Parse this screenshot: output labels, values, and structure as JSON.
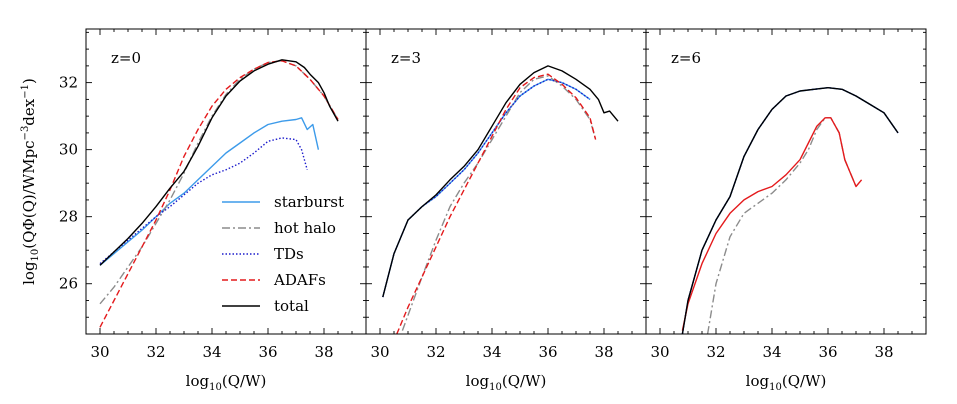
{
  "chart_data": [
    {
      "type": "line",
      "panel_label": "z=0",
      "xlabel": "log10(Q/W)",
      "ylabel": "log10(QΦ(Q)/WMpc−3dex−1)",
      "xlim": [
        29.5,
        39.5
      ],
      "ylim": [
        24.5,
        33.6
      ],
      "xticks": [
        30,
        32,
        34,
        36,
        38
      ],
      "yticks": [
        26,
        28,
        30,
        32
      ],
      "legend": {
        "position": "bottom-right",
        "entries": [
          "starburst",
          "hot halo",
          "TDs",
          "ADAFs",
          "total"
        ]
      },
      "series": [
        {
          "name": "starburst",
          "style": "solid",
          "color": "#3d9bea",
          "x": [
            30.0,
            30.5,
            31.0,
            31.5,
            32.0,
            32.5,
            33.0,
            33.5,
            34.0,
            34.5,
            35.0,
            35.5,
            36.0,
            36.5,
            37.0,
            37.2,
            37.4,
            37.6,
            37.8
          ],
          "y": [
            26.55,
            26.9,
            27.25,
            27.6,
            28.0,
            28.4,
            28.7,
            29.1,
            29.5,
            29.9,
            30.2,
            30.5,
            30.75,
            30.85,
            30.9,
            30.95,
            30.6,
            30.75,
            30.0
          ]
        },
        {
          "name": "hot halo",
          "style": "dashdot",
          "color": "#8c8c8c",
          "x": [
            30.0,
            30.5,
            31.0,
            31.5,
            32.0,
            32.5,
            33.0,
            33.5,
            34.0,
            34.5,
            35.0,
            35.5,
            36.0,
            36.5,
            37.0,
            37.5,
            38.0,
            38.5
          ],
          "y": [
            25.4,
            25.9,
            26.5,
            27.1,
            27.8,
            28.5,
            29.3,
            30.2,
            31.0,
            31.65,
            32.1,
            32.4,
            32.6,
            32.65,
            32.5,
            32.1,
            31.6,
            30.9
          ]
        },
        {
          "name": "TDs",
          "style": "dotted",
          "color": "#1c1ccc",
          "x": [
            30.0,
            30.5,
            31.0,
            31.5,
            32.0,
            32.5,
            33.0,
            33.5,
            34.0,
            34.5,
            35.0,
            35.5,
            36.0,
            36.5,
            37.0,
            37.2,
            37.4
          ],
          "y": [
            26.6,
            26.95,
            27.3,
            27.65,
            28.0,
            28.3,
            28.65,
            29.0,
            29.25,
            29.4,
            29.6,
            29.9,
            30.25,
            30.35,
            30.3,
            30.0,
            29.4
          ]
        },
        {
          "name": "ADAFs",
          "style": "dashed",
          "color": "#e41a1c",
          "x": [
            30.0,
            30.5,
            31.0,
            31.5,
            32.0,
            32.5,
            33.0,
            33.5,
            34.0,
            34.5,
            35.0,
            35.5,
            36.0,
            36.5,
            37.0,
            37.5,
            38.0,
            38.5
          ],
          "y": [
            24.7,
            25.5,
            26.3,
            27.1,
            27.9,
            28.8,
            29.8,
            30.6,
            31.3,
            31.8,
            32.15,
            32.4,
            32.6,
            32.65,
            32.5,
            32.1,
            31.6,
            30.9
          ]
        },
        {
          "name": "total",
          "style": "solid",
          "color": "#000000",
          "x": [
            30.0,
            30.5,
            31.0,
            31.5,
            32.0,
            32.5,
            33.0,
            33.5,
            34.0,
            34.5,
            35.0,
            35.5,
            36.0,
            36.5,
            37.0,
            37.3,
            37.5,
            37.8,
            38.0,
            38.2,
            38.5
          ],
          "y": [
            26.55,
            26.95,
            27.35,
            27.8,
            28.3,
            28.85,
            29.35,
            30.1,
            30.95,
            31.6,
            32.05,
            32.35,
            32.55,
            32.68,
            32.62,
            32.45,
            32.25,
            32.0,
            31.7,
            31.3,
            30.85
          ]
        }
      ]
    },
    {
      "type": "line",
      "panel_label": "z=3",
      "xlabel": "log10(Q/W)",
      "xlim": [
        29.5,
        39.5
      ],
      "ylim": [
        24.5,
        33.6
      ],
      "xticks": [
        30,
        32,
        34,
        36,
        38
      ],
      "series": [
        {
          "name": "starburst",
          "style": "solid",
          "color": "#3d9bea",
          "x": [
            30.1,
            30.5,
            31.0,
            31.5,
            32.0,
            32.5,
            33.0,
            33.5,
            34.0,
            34.5,
            35.0,
            35.5,
            36.0,
            36.5,
            37.0,
            37.5
          ],
          "y": [
            25.6,
            26.9,
            27.9,
            28.3,
            28.6,
            29.0,
            29.4,
            29.9,
            30.5,
            31.1,
            31.6,
            31.9,
            32.1,
            32.0,
            31.8,
            31.5
          ]
        },
        {
          "name": "hot halo",
          "style": "dashdot",
          "color": "#8c8c8c",
          "x": [
            30.8,
            31.5,
            32.0,
            32.5,
            33.0,
            33.5,
            34.0,
            34.5,
            35.0,
            35.5,
            36.0,
            36.5,
            37.0,
            37.5,
            37.7
          ],
          "y": [
            24.6,
            26.2,
            27.3,
            28.3,
            29.0,
            29.6,
            30.3,
            31.0,
            31.7,
            32.1,
            32.2,
            31.9,
            31.5,
            30.9,
            30.3
          ]
        },
        {
          "name": "TDs",
          "style": "dotted",
          "color": "#1c1ccc",
          "x": [
            30.1,
            30.5,
            31.0,
            31.5,
            32.0,
            32.5,
            33.0,
            33.5,
            34.0,
            34.5,
            35.0,
            35.5,
            36.0,
            36.5,
            37.0,
            37.5
          ],
          "y": [
            25.6,
            26.9,
            27.9,
            28.3,
            28.6,
            29.0,
            29.4,
            29.9,
            30.5,
            31.1,
            31.6,
            31.9,
            32.1,
            32.0,
            31.8,
            31.5
          ]
        },
        {
          "name": "ADAFs",
          "style": "dashed",
          "color": "#e41a1c",
          "x": [
            30.6,
            31.0,
            31.5,
            32.0,
            32.5,
            33.0,
            33.5,
            34.0,
            34.5,
            35.0,
            35.5,
            36.0,
            36.5,
            37.0,
            37.5,
            37.7
          ],
          "y": [
            24.5,
            25.3,
            26.2,
            27.1,
            28.0,
            28.8,
            29.6,
            30.4,
            31.2,
            31.85,
            32.15,
            32.25,
            31.95,
            31.55,
            30.95,
            30.3
          ]
        },
        {
          "name": "total",
          "style": "solid",
          "color": "#000000",
          "x": [
            30.1,
            30.5,
            31.0,
            31.5,
            32.0,
            32.5,
            33.0,
            33.5,
            34.0,
            34.5,
            35.0,
            35.5,
            36.0,
            36.5,
            37.0,
            37.5,
            37.8,
            38.0,
            38.2,
            38.5
          ],
          "y": [
            25.6,
            26.9,
            27.9,
            28.3,
            28.65,
            29.1,
            29.5,
            30.0,
            30.7,
            31.4,
            31.95,
            32.3,
            32.5,
            32.35,
            32.1,
            31.8,
            31.5,
            31.1,
            31.15,
            30.85
          ]
        }
      ]
    },
    {
      "type": "line",
      "panel_label": "z=6",
      "xlabel": "log10(Q/W)",
      "xlim": [
        29.5,
        39.5
      ],
      "ylim": [
        24.5,
        33.6
      ],
      "xticks": [
        30,
        32,
        34,
        36,
        38
      ],
      "series": [
        {
          "name": "starburst",
          "style": "solid",
          "color": "#3d9bea",
          "x": [
            30.8,
            31.0,
            31.5,
            32.0,
            32.5,
            33.0,
            33.5,
            34.0,
            34.5,
            35.0,
            35.5,
            36.0,
            36.5,
            37.0,
            37.5,
            38.0,
            38.5
          ],
          "y": [
            24.5,
            25.5,
            27.0,
            27.9,
            28.6,
            29.8,
            30.6,
            31.2,
            31.6,
            31.75,
            31.8,
            31.85,
            31.8,
            31.6,
            31.35,
            31.1,
            30.5
          ]
        },
        {
          "name": "hot halo",
          "style": "dashdot",
          "color": "#8c8c8c",
          "x": [
            31.7,
            32.0,
            32.5,
            33.0,
            33.5,
            34.0,
            34.5,
            35.0,
            35.3,
            35.6,
            35.9,
            36.1,
            36.4,
            36.6,
            36.8,
            37.0
          ],
          "y": [
            24.5,
            26.0,
            27.4,
            28.1,
            28.4,
            28.7,
            29.1,
            29.6,
            30.0,
            30.6,
            30.95,
            30.95,
            30.5,
            29.7,
            29.3,
            28.9
          ]
        },
        {
          "name": "TDs",
          "style": "dotted",
          "color": "#1c1ccc",
          "x": [
            30.8,
            31.0,
            31.5,
            32.0,
            32.5,
            33.0,
            33.5,
            34.0,
            34.5,
            35.0,
            35.5,
            36.0,
            36.5,
            37.0,
            37.5,
            38.0,
            38.5
          ],
          "y": [
            24.5,
            25.5,
            27.0,
            27.9,
            28.6,
            29.8,
            30.6,
            31.2,
            31.6,
            31.75,
            31.8,
            31.85,
            31.8,
            31.6,
            31.35,
            31.1,
            30.5
          ]
        },
        {
          "name": "ADAFs",
          "style": "solid",
          "color": "#e41a1c",
          "x": [
            30.8,
            31.0,
            31.5,
            32.0,
            32.5,
            33.0,
            33.5,
            34.0,
            34.5,
            35.0,
            35.3,
            35.6,
            35.9,
            36.1,
            36.4,
            36.6,
            36.8,
            37.0,
            37.2
          ],
          "y": [
            24.6,
            25.4,
            26.6,
            27.5,
            28.1,
            28.5,
            28.75,
            28.9,
            29.25,
            29.7,
            30.2,
            30.7,
            30.95,
            30.95,
            30.5,
            29.7,
            29.3,
            28.9,
            29.1
          ]
        },
        {
          "name": "total",
          "style": "solid",
          "color": "#000000",
          "x": [
            30.8,
            31.0,
            31.5,
            32.0,
            32.5,
            33.0,
            33.5,
            34.0,
            34.5,
            35.0,
            35.5,
            36.0,
            36.5,
            37.0,
            37.5,
            38.0,
            38.5
          ],
          "y": [
            24.5,
            25.5,
            27.0,
            27.9,
            28.6,
            29.8,
            30.6,
            31.2,
            31.6,
            31.75,
            31.8,
            31.85,
            31.8,
            31.6,
            31.35,
            31.1,
            30.5
          ]
        }
      ]
    }
  ]
}
